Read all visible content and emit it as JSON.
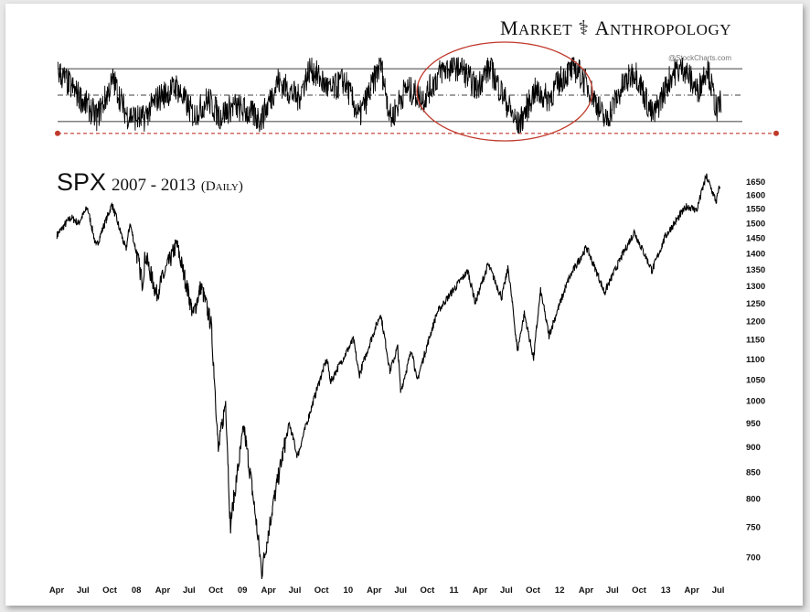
{
  "brand": {
    "cap1": "M",
    "rest1": "ARKET",
    "glyph": "⚕",
    "cap2": "A",
    "rest2": "NTHROPOLOGY"
  },
  "title": {
    "symbol": "SPX",
    "range": "2007 - 2013",
    "period": "(Daily)"
  },
  "chart_data": [
    {
      "type": "line",
      "name": "oscillator-panel",
      "credit": "@StockCharts.com",
      "ylim": [
        0,
        1
      ],
      "reference_lines": {
        "upper": 0.88,
        "middle": 0.5,
        "lower": 0.12,
        "dotted_support": -0.05
      },
      "highlight": "circle",
      "series": [
        {
          "x": [
            "2007-04-01",
            "2007-06-01",
            "2007-08-15",
            "2007-10-10",
            "2007-11-25",
            "2008-01-20",
            "2008-03-10",
            "2008-05-15",
            "2008-07-15",
            "2008-09-01",
            "2008-10-10",
            "2008-12-01",
            "2009-03-05",
            "2009-05-01",
            "2009-07-10",
            "2009-08-20",
            "2009-10-30",
            "2009-12-15",
            "2010-02-05",
            "2010-04-20",
            "2010-05-25",
            "2010-07-15",
            "2010-09-15",
            "2010-11-15",
            "2011-01-20",
            "2011-03-15",
            "2011-05-01",
            "2011-06-15",
            "2011-08-08",
            "2011-10-03",
            "2011-11-20",
            "2012-01-15",
            "2012-02-25",
            "2012-04-15",
            "2012-06-04",
            "2012-08-01",
            "2012-09-14",
            "2012-11-15",
            "2013-01-20",
            "2013-03-01",
            "2013-04-18",
            "2013-05-21",
            "2013-06-24",
            "2013-07-08"
          ],
          "values": [
            0.85,
            0.55,
            0.18,
            0.72,
            0.22,
            0.15,
            0.45,
            0.62,
            0.2,
            0.45,
            0.2,
            0.35,
            0.15,
            0.7,
            0.45,
            0.9,
            0.55,
            0.72,
            0.18,
            0.95,
            0.15,
            0.6,
            0.45,
            0.85,
            0.92,
            0.6,
            0.9,
            0.5,
            0.05,
            0.55,
            0.45,
            0.8,
            0.88,
            0.55,
            0.12,
            0.62,
            0.85,
            0.18,
            0.82,
            0.9,
            0.55,
            0.92,
            0.25,
            0.45
          ]
        }
      ]
    },
    {
      "type": "line",
      "name": "SPX",
      "xlim": [
        "2007-04-01",
        "2013-07-15"
      ],
      "ylim": [
        670,
        1700
      ],
      "y_scale": "log",
      "yticks": [
        700,
        750,
        800,
        850,
        900,
        950,
        1000,
        1050,
        1100,
        1150,
        1200,
        1250,
        1300,
        1350,
        1400,
        1450,
        1500,
        1550,
        1600,
        1650
      ],
      "xticks": [
        {
          "date": "2007-04-01",
          "label": "Apr"
        },
        {
          "date": "2007-07-01",
          "label": "Jul"
        },
        {
          "date": "2007-10-01",
          "label": "Oct"
        },
        {
          "date": "2008-01-01",
          "label": "08"
        },
        {
          "date": "2008-04-01",
          "label": "Apr"
        },
        {
          "date": "2008-07-01",
          "label": "Jul"
        },
        {
          "date": "2008-10-01",
          "label": "Oct"
        },
        {
          "date": "2009-01-01",
          "label": "09"
        },
        {
          "date": "2009-04-01",
          "label": "Apr"
        },
        {
          "date": "2009-07-01",
          "label": "Jul"
        },
        {
          "date": "2009-10-01",
          "label": "Oct"
        },
        {
          "date": "2010-01-01",
          "label": "10"
        },
        {
          "date": "2010-04-01",
          "label": "Apr"
        },
        {
          "date": "2010-07-01",
          "label": "Jul"
        },
        {
          "date": "2010-10-01",
          "label": "Oct"
        },
        {
          "date": "2011-01-01",
          "label": "11"
        },
        {
          "date": "2011-04-01",
          "label": "Apr"
        },
        {
          "date": "2011-07-01",
          "label": "Jul"
        },
        {
          "date": "2011-10-01",
          "label": "Oct"
        },
        {
          "date": "2012-01-01",
          "label": "12"
        },
        {
          "date": "2012-04-01",
          "label": "Apr"
        },
        {
          "date": "2012-07-01",
          "label": "Jul"
        },
        {
          "date": "2012-10-01",
          "label": "Oct"
        },
        {
          "date": "2013-01-01",
          "label": "13"
        },
        {
          "date": "2013-04-01",
          "label": "Apr"
        },
        {
          "date": "2013-07-01",
          "label": "Jul"
        }
      ],
      "series": [
        {
          "x": [
            "2007-04-02",
            "2007-05-20",
            "2007-06-15",
            "2007-07-16",
            "2007-08-15",
            "2007-10-09",
            "2007-11-26",
            "2007-12-10",
            "2008-01-22",
            "2008-02-01",
            "2008-03-10",
            "2008-05-19",
            "2008-07-15",
            "2008-08-11",
            "2008-09-15",
            "2008-10-10",
            "2008-11-04",
            "2008-11-20",
            "2009-01-06",
            "2009-03-09",
            "2009-06-12",
            "2009-07-10",
            "2009-10-19",
            "2009-11-02",
            "2010-01-19",
            "2010-02-08",
            "2010-04-23",
            "2010-05-25",
            "2010-06-21",
            "2010-07-01",
            "2010-08-09",
            "2010-08-26",
            "2010-11-05",
            "2011-02-18",
            "2011-03-16",
            "2011-04-29",
            "2011-06-15",
            "2011-07-07",
            "2011-08-08",
            "2011-09-01",
            "2011-10-03",
            "2011-10-27",
            "2011-11-25",
            "2012-02-01",
            "2012-04-02",
            "2012-06-04",
            "2012-09-14",
            "2012-11-15",
            "2013-01-02",
            "2013-03-15",
            "2013-04-18",
            "2013-05-21",
            "2013-06-24",
            "2013-07-08"
          ],
          "values": [
            1460,
            1520,
            1500,
            1555,
            1420,
            1565,
            1410,
            1500,
            1310,
            1395,
            1275,
            1430,
            1215,
            1300,
            1190,
            890,
            1000,
            750,
            940,
            676,
            950,
            880,
            1100,
            1045,
            1150,
            1060,
            1220,
            1070,
            1130,
            1020,
            1125,
            1045,
            1225,
            1345,
            1250,
            1365,
            1265,
            1355,
            1120,
            1220,
            1100,
            1285,
            1160,
            1320,
            1420,
            1280,
            1470,
            1345,
            1460,
            1560,
            1545,
            1670,
            1575,
            1640
          ]
        }
      ]
    }
  ]
}
